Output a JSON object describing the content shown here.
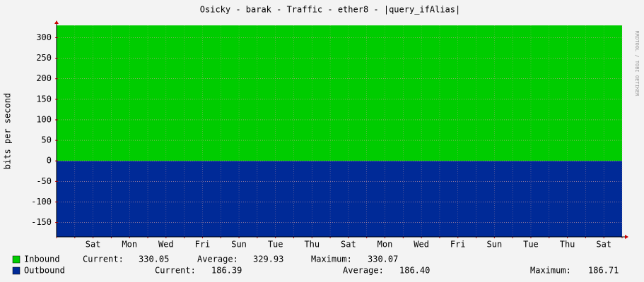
{
  "chart_data": {
    "type": "area",
    "title": "Osicky - barak - Traffic - ether8 - |query_ifAlias|",
    "ylabel": "bits per second",
    "watermark": "RRDTOOL / TOBI OETIKER",
    "categories": [
      null,
      null,
      "Sat",
      null,
      "Mon",
      null,
      "Wed",
      null,
      "Fri",
      null,
      "Sun",
      null,
      "Tue",
      null,
      "Thu",
      null,
      "Sat",
      null,
      "Mon",
      null,
      "Wed",
      null,
      "Fri",
      null,
      "Sun",
      null,
      "Tue",
      null,
      "Thu",
      null,
      "Sat",
      null
    ],
    "series": [
      {
        "name": "Inbound",
        "color": "#00cc00",
        "values": [
          330,
          330,
          330,
          330,
          330,
          330,
          330,
          330,
          330,
          330,
          330,
          330,
          330,
          330,
          330,
          330,
          330,
          330,
          330,
          330,
          330,
          330,
          330,
          330,
          330,
          330,
          330,
          330,
          330,
          330,
          330,
          330
        ],
        "stats": [
          "330.05",
          "329.93",
          "330.07"
        ]
      },
      {
        "name": "Outbound",
        "color": "#002a97",
        "values": [
          -186,
          -186,
          -186,
          -186,
          -186,
          -186,
          -186,
          -186,
          -186,
          -186,
          -186,
          -186,
          -186,
          -186,
          -186,
          -186,
          -186,
          -186,
          -186,
          -186,
          -186,
          -186,
          -186,
          -186,
          -186,
          -186,
          -186,
          -186,
          -186,
          -186,
          -186,
          -186
        ],
        "stats": [
          "186.39",
          "186.40",
          "186.71"
        ]
      }
    ],
    "stat_labels": [
      "Current:",
      "Average:",
      "Maximum:"
    ],
    "ylim": [
      -185,
      330
    ],
    "yticks": [
      300,
      250,
      200,
      150,
      100,
      50,
      0,
      -50,
      -100,
      -150
    ],
    "grid": true
  }
}
